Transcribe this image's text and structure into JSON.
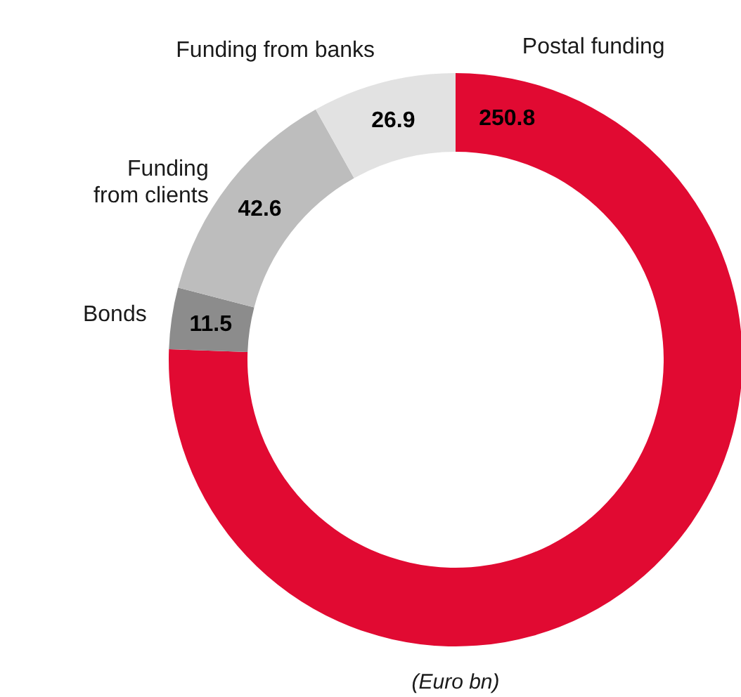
{
  "chart_data": {
    "type": "donut",
    "categories": [
      "Postal funding",
      "Bonds",
      "Funding from clients",
      "Funding from banks"
    ],
    "values": [
      250.8,
      11.5,
      42.6,
      26.9
    ],
    "colors": [
      "#e10a32",
      "#8c8c8c",
      "#bdbdbd",
      "#e2e2e2"
    ],
    "data_labels": true,
    "annotations": [
      "(Euro bn)"
    ]
  }
}
